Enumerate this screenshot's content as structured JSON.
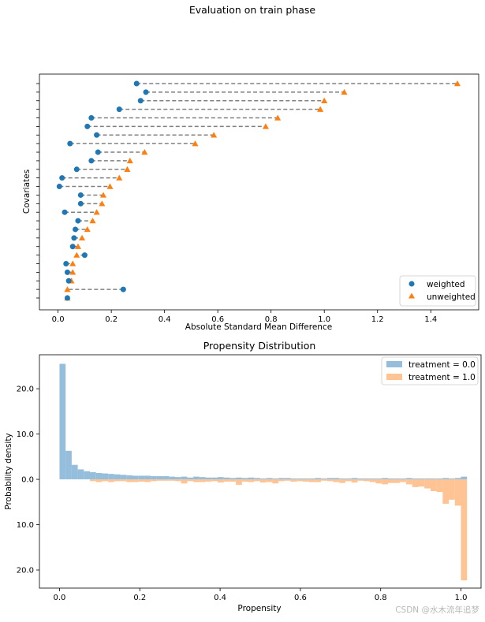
{
  "figure": {
    "title": "Evaluation on train phase",
    "watermark": "CSDN @水木流年追梦"
  },
  "colors": {
    "weighted": "#1f77b4",
    "unweighted": "#ff7f0e",
    "connector": "#808080",
    "treatment0": "#94bedc",
    "treatment1": "#ffc394"
  },
  "chart_data": [
    {
      "type": "scatter",
      "title": "",
      "xlabel": "Absolute Standard Mean Difference",
      "ylabel": "Covariates",
      "xlim": [
        -0.07,
        1.58
      ],
      "x_ticks": [
        0.0,
        0.2,
        0.4,
        0.6,
        0.8,
        1.0,
        1.2,
        1.4
      ],
      "x_tick_labels": [
        "0.0",
        "0.2",
        "0.4",
        "0.6",
        "0.8",
        "1.0",
        "1.2",
        "1.4"
      ],
      "y_tick_labels_shown": false,
      "legend_position": "lower-right",
      "series": [
        {
          "name": "weighted",
          "marker": "circle",
          "values": [
            0.295,
            0.33,
            0.31,
            0.23,
            0.125,
            0.11,
            0.145,
            0.045,
            0.15,
            0.125,
            0.07,
            0.015,
            0.005,
            0.085,
            0.085,
            0.025,
            0.075,
            0.065,
            0.06,
            0.055,
            0.1,
            0.03,
            0.035,
            0.04,
            0.245,
            0.035
          ]
        },
        {
          "name": "unweighted",
          "marker": "triangle",
          "values": [
            1.5,
            1.075,
            1.0,
            0.985,
            0.825,
            0.78,
            0.585,
            0.515,
            0.325,
            0.27,
            0.26,
            0.23,
            0.195,
            0.17,
            0.165,
            0.145,
            0.13,
            0.11,
            0.09,
            0.075,
            0.07,
            0.055,
            0.055,
            0.05,
            0.035,
            0.035
          ]
        }
      ]
    },
    {
      "type": "bar",
      "title": "Propensity Distribution",
      "xlabel": "Propensity",
      "ylabel": "Probability density",
      "xlim": [
        -0.05,
        1.05
      ],
      "ylim": [
        -24.0,
        27.5
      ],
      "x_ticks": [
        0.0,
        0.2,
        0.4,
        0.6,
        0.8,
        1.0
      ],
      "x_tick_labels": [
        "0.0",
        "0.2",
        "0.4",
        "0.6",
        "0.8",
        "1.0"
      ],
      "y_ticks": [
        20,
        10,
        0,
        -10,
        -20
      ],
      "y_tick_labels": [
        "20.0",
        "10.0",
        "0.0",
        "10.0",
        "20.0"
      ],
      "legend_position": "upper-right",
      "bin_width": 0.01515,
      "series": [
        {
          "name": "treatment = 0.0",
          "direction": "up",
          "bin_start": 0.0,
          "values": [
            25.5,
            6.3,
            3.2,
            2.2,
            1.8,
            1.6,
            1.4,
            1.3,
            1.2,
            1.1,
            1.0,
            0.9,
            0.8,
            0.8,
            0.8,
            0.7,
            0.7,
            0.7,
            0.6,
            0.5,
            0.6,
            0.4,
            0.6,
            0.5,
            0.4,
            0.4,
            0.5,
            0.4,
            0.3,
            0.4,
            0.3,
            0.4,
            0.3,
            0.2,
            0.3,
            0.2,
            0.3,
            0.3,
            0.2,
            0.2,
            0.2,
            0.2,
            0.3,
            0.2,
            0.3,
            0.3,
            0.2,
            0.2,
            0.3,
            0.2,
            0.2,
            0.2,
            0.2,
            0.3,
            0.2,
            0.2,
            0.2,
            0.3,
            0.2,
            0.2,
            0.2,
            0.2,
            0.2,
            0.3,
            0.2,
            0.3,
            0.6
          ]
        },
        {
          "name": "treatment = 1.0",
          "direction": "down",
          "bin_start": 0.0,
          "values": [
            0,
            0,
            0,
            0,
            0,
            0.4,
            0.6,
            0.4,
            0.6,
            0.4,
            0.4,
            0.6,
            0.6,
            0.5,
            0.6,
            0.4,
            0.3,
            0.3,
            0.3,
            0.4,
            0.9,
            0.4,
            0.6,
            0.6,
            0.5,
            0.4,
            0.7,
            0.5,
            0.5,
            1.2,
            0.5,
            0.6,
            0.4,
            0.7,
            0.6,
            0.9,
            0.4,
            0.3,
            0.5,
            0.4,
            0.5,
            0.6,
            0.6,
            0.3,
            0.4,
            0.6,
            0.8,
            0.4,
            0.7,
            0.3,
            0.4,
            0.6,
            0.9,
            1.1,
            0.8,
            0.8,
            0.6,
            1.1,
            1.7,
            1.6,
            2.0,
            2.6,
            2.8,
            5.4,
            4.5,
            5.8,
            22.3
          ]
        }
      ]
    }
  ]
}
